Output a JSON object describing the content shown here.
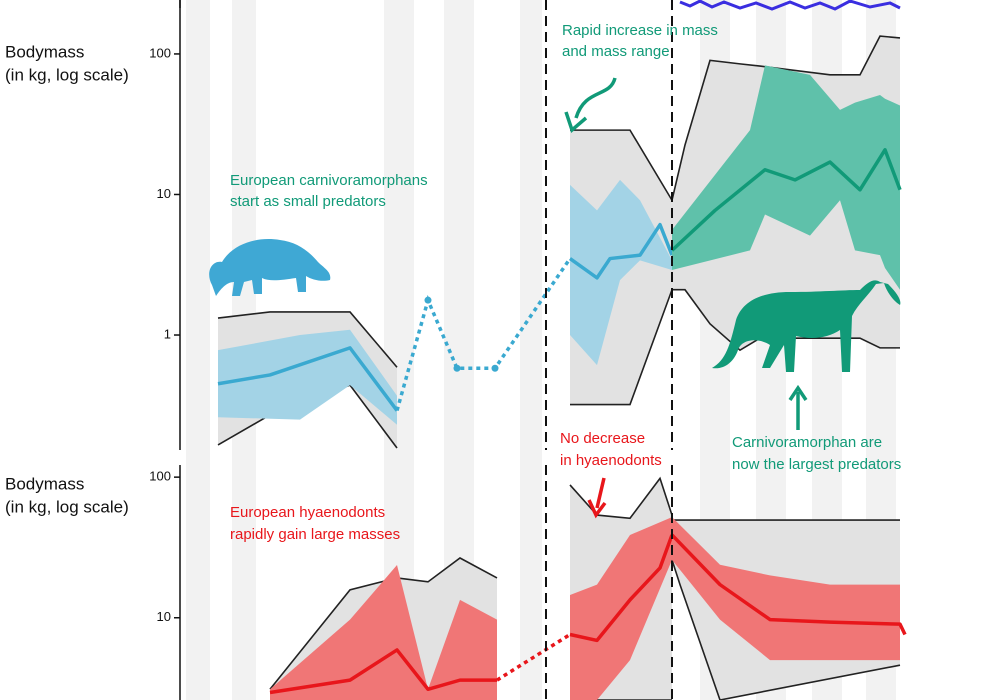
{
  "chart_data": [
    {
      "type": "line",
      "y_label": [
        "Bodymass",
        "(in kg, log scale)"
      ],
      "log_scale": true,
      "ylim": [
        0.152,
        242
      ],
      "yticks": [
        1,
        10,
        100
      ],
      "xlim": [
        0,
        730
      ],
      "vlines": [
        366,
        492
      ],
      "annotations": [
        {
          "lines": [
            "European carnivoramorphans",
            "start as small predators"
          ],
          "color": "#119a78"
        },
        {
          "lines": [
            "Rapid increase in mass",
            "and mass range"
          ],
          "color": "#119a78"
        },
        {
          "lines": [
            "Carnivoramorphan are",
            "now the largest predators"
          ],
          "color": "#119a78"
        }
      ],
      "series": [
        {
          "style": "band",
          "color": "#e2e2e2",
          "outline": "#222222",
          "x": [
            38,
            90,
            170,
            217
          ],
          "upper": [
            1.32,
            1.46,
            1.46,
            0.59
          ],
          "lower": [
            0.165,
            0.27,
            0.44,
            0.157
          ]
        },
        {
          "style": "band",
          "color": "#a3d3e6",
          "x": [
            38,
            120,
            170,
            217
          ],
          "upper": [
            0.78,
            1,
            1.09,
            0.37
          ],
          "lower": [
            0.26,
            0.25,
            0.44,
            0.23
          ]
        },
        {
          "style": "line",
          "color": "#3aa9d0",
          "x": [
            38,
            90,
            170,
            217
          ],
          "values": [
            0.45,
            0.52,
            0.81,
            0.29
          ]
        },
        {
          "style": "dotted",
          "color": "#3aa9d0",
          "x": [
            217,
            248,
            277,
            315,
            390
          ],
          "values": [
            0.29,
            1.77,
            0.58,
            0.58,
            3.5
          ]
        },
        {
          "style": "band",
          "color": "#e2e2e2",
          "outline": "#222222",
          "x": [
            390,
            450,
            492
          ],
          "upper": [
            28.7,
            28.7,
            9.1
          ],
          "lower": [
            0.32,
            0.32,
            2.1
          ]
        },
        {
          "style": "band",
          "color": "#a3d3e6",
          "x": [
            390,
            417,
            440,
            460,
            492
          ],
          "upper": [
            11.7,
            7.7,
            12.7,
            9.1,
            3.4
          ],
          "lower": [
            1,
            0.61,
            2.46,
            3.4,
            2.9
          ]
        },
        {
          "style": "line",
          "color": "#3aa9d0",
          "x": [
            390,
            417,
            430,
            460,
            480,
            492
          ],
          "values": [
            3.5,
            2.55,
            3.5,
            3.7,
            6.1,
            3.7
          ]
        },
        {
          "style": "band",
          "color": "#e2e2e2",
          "outline": "#222222",
          "x": [
            492,
            505,
            530,
            560,
            580,
            650,
            680,
            700,
            720
          ],
          "upper": [
            9.1,
            22.5,
            90,
            85,
            82,
            71,
            71,
            134,
            130
          ],
          "lower": [
            2.1,
            2.1,
            1.2,
            0.78,
            0.95,
            0.95,
            0.95,
            0.81,
            0.81
          ]
        },
        {
          "style": "band",
          "color": "#5fc1aa",
          "x": [
            492,
            570,
            585,
            630,
            660,
            675,
            700,
            705,
            720
          ],
          "upper": [
            5.6,
            28.7,
            83,
            71,
            40,
            45,
            51,
            48,
            43
          ],
          "lower": [
            2.9,
            4.0,
            7.2,
            5.1,
            9.1,
            4.0,
            3.7,
            3.0,
            2.1
          ]
        },
        {
          "style": "line",
          "color": "#119a78",
          "x": [
            492,
            535,
            585,
            615,
            650,
            680,
            705,
            720
          ],
          "values": [
            4.0,
            7.7,
            15,
            12.7,
            17,
            10.8,
            20.8,
            10.8
          ]
        }
      ]
    },
    {
      "type": "line",
      "y_label": [
        "Bodymass",
        "(in kg, log scale)"
      ],
      "log_scale": true,
      "ylim": [
        2.6,
        122
      ],
      "yticks": [
        10,
        100
      ],
      "xlim": [
        0,
        730
      ],
      "vlines": [
        366,
        492
      ],
      "annotations": [
        {
          "lines": [
            "No decrease",
            "in hyaenodonts"
          ],
          "color": "#e8161b"
        },
        {
          "lines": [
            "European hyaenodonts",
            "rapidly gain large masses"
          ],
          "color": "#e8161b"
        }
      ],
      "series": [
        {
          "style": "band",
          "color": "#e2e2e2",
          "outline": "#222222",
          "x": [
            90,
            170,
            217,
            248,
            280,
            317
          ],
          "upper": [
            3.1,
            15.8,
            19.2,
            18,
            26.6,
            19.2
          ],
          "lower": [
            2.6,
            2.6,
            2.6,
            2.6,
            2.6,
            2.6
          ]
        },
        {
          "style": "band",
          "color": "#f07676",
          "x": [
            90,
            170,
            217,
            248,
            280,
            317
          ],
          "upper": [
            3.1,
            9.7,
            23.7,
            3.1,
            13.4,
            9.7
          ],
          "lower": [
            2.6,
            2.6,
            2.6,
            2.6,
            2.6,
            2.6
          ]
        },
        {
          "style": "line",
          "color": "#e8161b",
          "x": [
            90,
            170,
            217,
            248,
            280,
            317
          ],
          "values": [
            2.94,
            3.6,
            5.9,
            3.1,
            3.6,
            3.6
          ]
        },
        {
          "style": "dotted",
          "color": "#e8161b",
          "x": [
            317,
            390
          ],
          "values": [
            3.6,
            7.6
          ]
        },
        {
          "style": "band",
          "color": "#e2e2e2",
          "outline": "#222222",
          "x": [
            390,
            417,
            450,
            480,
            492
          ],
          "upper": [
            88,
            53.7,
            51,
            98,
            53.7
          ],
          "lower": [
            2.6,
            2.6,
            2.6,
            2.6,
            2.6
          ]
        },
        {
          "style": "band",
          "color": "#f07676",
          "x": [
            390,
            417,
            450,
            492
          ],
          "upper": [
            14.5,
            17.2,
            38.8,
            52
          ],
          "lower": [
            2.6,
            2.6,
            5,
            25.8
          ]
        },
        {
          "style": "line",
          "color": "#e8161b",
          "x": [
            390,
            417,
            450,
            480,
            492
          ],
          "values": [
            7.6,
            6.9,
            13.4,
            22.6,
            38.8
          ]
        },
        {
          "style": "band",
          "color": "#e2e2e2",
          "outline": "#222222",
          "x": [
            492,
            500,
            540,
            720
          ],
          "upper": [
            49.5,
            49.5,
            49.5,
            49.5
          ],
          "lower": [
            25.8,
            17.2,
            2.6,
            4.6
          ]
        },
        {
          "style": "band",
          "color": "#f07676",
          "x": [
            492,
            540,
            590,
            650,
            720
          ],
          "upper": [
            52,
            23.8,
            20,
            17.2,
            17.2
          ],
          "lower": [
            25.8,
            9.7,
            5.0,
            5.0,
            5.0
          ]
        },
        {
          "style": "line",
          "color": "#e8161b",
          "x": [
            492,
            540,
            590,
            650,
            720,
            725
          ],
          "values": [
            38.8,
            17.2,
            9.7,
            9.3,
            9.0,
            7.6
          ]
        }
      ]
    }
  ]
}
